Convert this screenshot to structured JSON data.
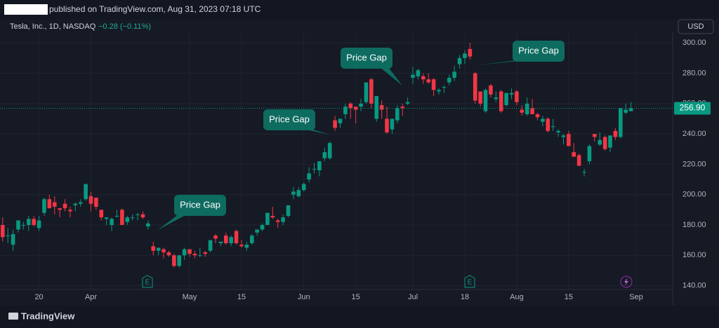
{
  "header": {
    "text": "published on TradingView.com, Aug 31, 2023 07:18 UTC"
  },
  "footer": {
    "brand": "TradingView"
  },
  "chart_data": {
    "type": "candlestick",
    "symbol": "Tesla, Inc., 1D, NASDAQ",
    "change": "−0.28 (−0.11%)",
    "currency": "USD",
    "up_color": "#089981",
    "down_color": "#f23645",
    "open": [
      180,
      173,
      167,
      177,
      180,
      180,
      184,
      178,
      188,
      197,
      195,
      191,
      194,
      190,
      193,
      194,
      197,
      199,
      198,
      190,
      184,
      180,
      186,
      190,
      182,
      185,
      187,
      187,
      179,
      166,
      163,
      164,
      162,
      160,
      153,
      160,
      164,
      161,
      160,
      162,
      163,
      173,
      168,
      173,
      168,
      176,
      167,
      165,
      168,
      175,
      177,
      180,
      186,
      183,
      182,
      186,
      200,
      199,
      203,
      210,
      217,
      216,
      224,
      224,
      249,
      247,
      253,
      260,
      258,
      258,
      261,
      276,
      250,
      259,
      250,
      243,
      249,
      258,
      260,
      277,
      278,
      278,
      276,
      276,
      268,
      271,
      274,
      277,
      286,
      290,
      296,
      280,
      268,
      255,
      272,
      263,
      268,
      259,
      266,
      268,
      256,
      253,
      257,
      253,
      248,
      250,
      245,
      241,
      238,
      240,
      228,
      226,
      215,
      222,
      240,
      233,
      238,
      231,
      242,
      238,
      254,
      255
    ],
    "high": [
      185,
      178,
      177,
      183,
      182,
      186,
      186,
      186,
      198,
      200,
      199,
      191,
      197,
      192,
      195,
      197,
      207,
      202,
      198,
      190,
      185,
      185,
      190,
      191,
      186,
      187,
      188,
      189,
      183,
      169,
      165,
      165,
      163,
      161,
      160,
      165,
      164,
      163,
      165,
      163,
      170,
      174,
      169,
      175,
      173,
      177,
      170,
      169,
      174,
      177,
      181,
      188,
      192,
      184,
      187,
      193,
      205,
      205,
      208,
      218,
      221,
      222,
      231,
      235,
      252,
      250,
      260,
      261,
      258,
      263,
      274,
      277,
      265,
      262,
      258,
      250,
      259,
      260,
      264,
      284,
      283,
      280,
      280,
      277,
      270,
      272,
      279,
      285,
      292,
      295,
      300,
      281,
      268,
      270,
      273,
      268,
      269,
      267,
      270,
      269,
      259,
      264,
      263,
      254,
      252,
      251,
      250,
      243,
      240,
      242,
      234,
      227,
      217,
      233,
      240,
      241,
      239,
      239,
      244,
      257,
      260,
      261
    ],
    "low": [
      169,
      168,
      163,
      175,
      177,
      176,
      179,
      176,
      186,
      191,
      187,
      185,
      189,
      185,
      189,
      192,
      196,
      189,
      190,
      183,
      180,
      176,
      185,
      180,
      180,
      183,
      183,
      184,
      177,
      160,
      160,
      158,
      159,
      152,
      152,
      157,
      159,
      158,
      159,
      159,
      162,
      168,
      166,
      167,
      166,
      167,
      165,
      163,
      167,
      173,
      176,
      180,
      184,
      178,
      180,
      185,
      197,
      198,
      202,
      208,
      214,
      212,
      222,
      223,
      242,
      244,
      250,
      250,
      247,
      255,
      260,
      257,
      248,
      250,
      240,
      240,
      247,
      252,
      259,
      273,
      276,
      273,
      273,
      265,
      266,
      267,
      272,
      275,
      283,
      286,
      289,
      260,
      258,
      254,
      264,
      261,
      254,
      258,
      263,
      259,
      252,
      252,
      253,
      249,
      245,
      241,
      242,
      238,
      233,
      232,
      225,
      219,
      212,
      220,
      235,
      232,
      229,
      228,
      236,
      237,
      253,
      255
    ],
    "close": [
      172,
      173,
      174,
      183,
      180,
      184,
      180,
      183,
      197,
      191,
      192,
      190,
      191,
      189,
      194,
      195,
      207,
      194,
      192,
      185,
      185,
      184,
      186,
      180,
      185,
      185,
      187,
      185,
      181,
      163,
      165,
      162,
      160,
      153,
      160,
      164,
      161,
      160,
      160,
      161,
      170,
      171,
      169,
      168,
      172,
      168,
      166,
      167,
      173,
      177,
      180,
      188,
      185,
      182,
      185,
      193,
      202,
      203,
      207,
      214,
      217,
      222,
      228,
      234,
      244,
      250,
      258,
      257,
      256,
      260,
      274,
      260,
      265,
      256,
      241,
      250,
      257,
      257,
      261,
      279,
      282,
      276,
      274,
      269,
      269,
      271,
      277,
      281,
      290,
      293,
      291,
      262,
      260,
      269,
      266,
      264,
      255,
      267,
      267,
      261,
      254,
      260,
      253,
      251,
      250,
      242,
      245,
      242,
      239,
      232,
      225,
      219,
      215,
      232,
      238,
      236,
      230,
      239,
      238,
      257,
      256,
      257
    ],
    "last_price": {
      "value": 256.9,
      "label": "256.90"
    },
    "ylim": [
      137.5,
      307.5
    ],
    "yticks": [
      {
        "value": 140,
        "label": "140.00"
      },
      {
        "value": 160,
        "label": "160.00"
      },
      {
        "value": 180,
        "label": "180.00"
      },
      {
        "value": 200,
        "label": "200.00"
      },
      {
        "value": 220,
        "label": "220.00"
      },
      {
        "value": 240,
        "label": "240.00"
      },
      {
        "value": 260,
        "label": "260.00"
      },
      {
        "value": 280,
        "label": "280.00"
      },
      {
        "value": 300,
        "label": "300.00"
      }
    ],
    "xticks": [
      {
        "value": 7,
        "label": "20"
      },
      {
        "value": 17,
        "label": "Apr"
      },
      {
        "value": 36,
        "label": "May"
      },
      {
        "value": 46,
        "label": "15"
      },
      {
        "value": 58,
        "label": "Jun"
      },
      {
        "value": 68,
        "label": "15"
      },
      {
        "value": 79,
        "label": "Jul"
      },
      {
        "value": 89,
        "label": "18"
      },
      {
        "value": 99,
        "label": "Aug"
      },
      {
        "value": 109,
        "label": "15"
      },
      {
        "value": 122,
        "label": "Sep"
      }
    ],
    "grid": true,
    "annotations": [
      "Price Gap",
      "Price Gap",
      "Price Gap",
      "Price Gap"
    ],
    "events": [
      "E",
      "E"
    ]
  }
}
